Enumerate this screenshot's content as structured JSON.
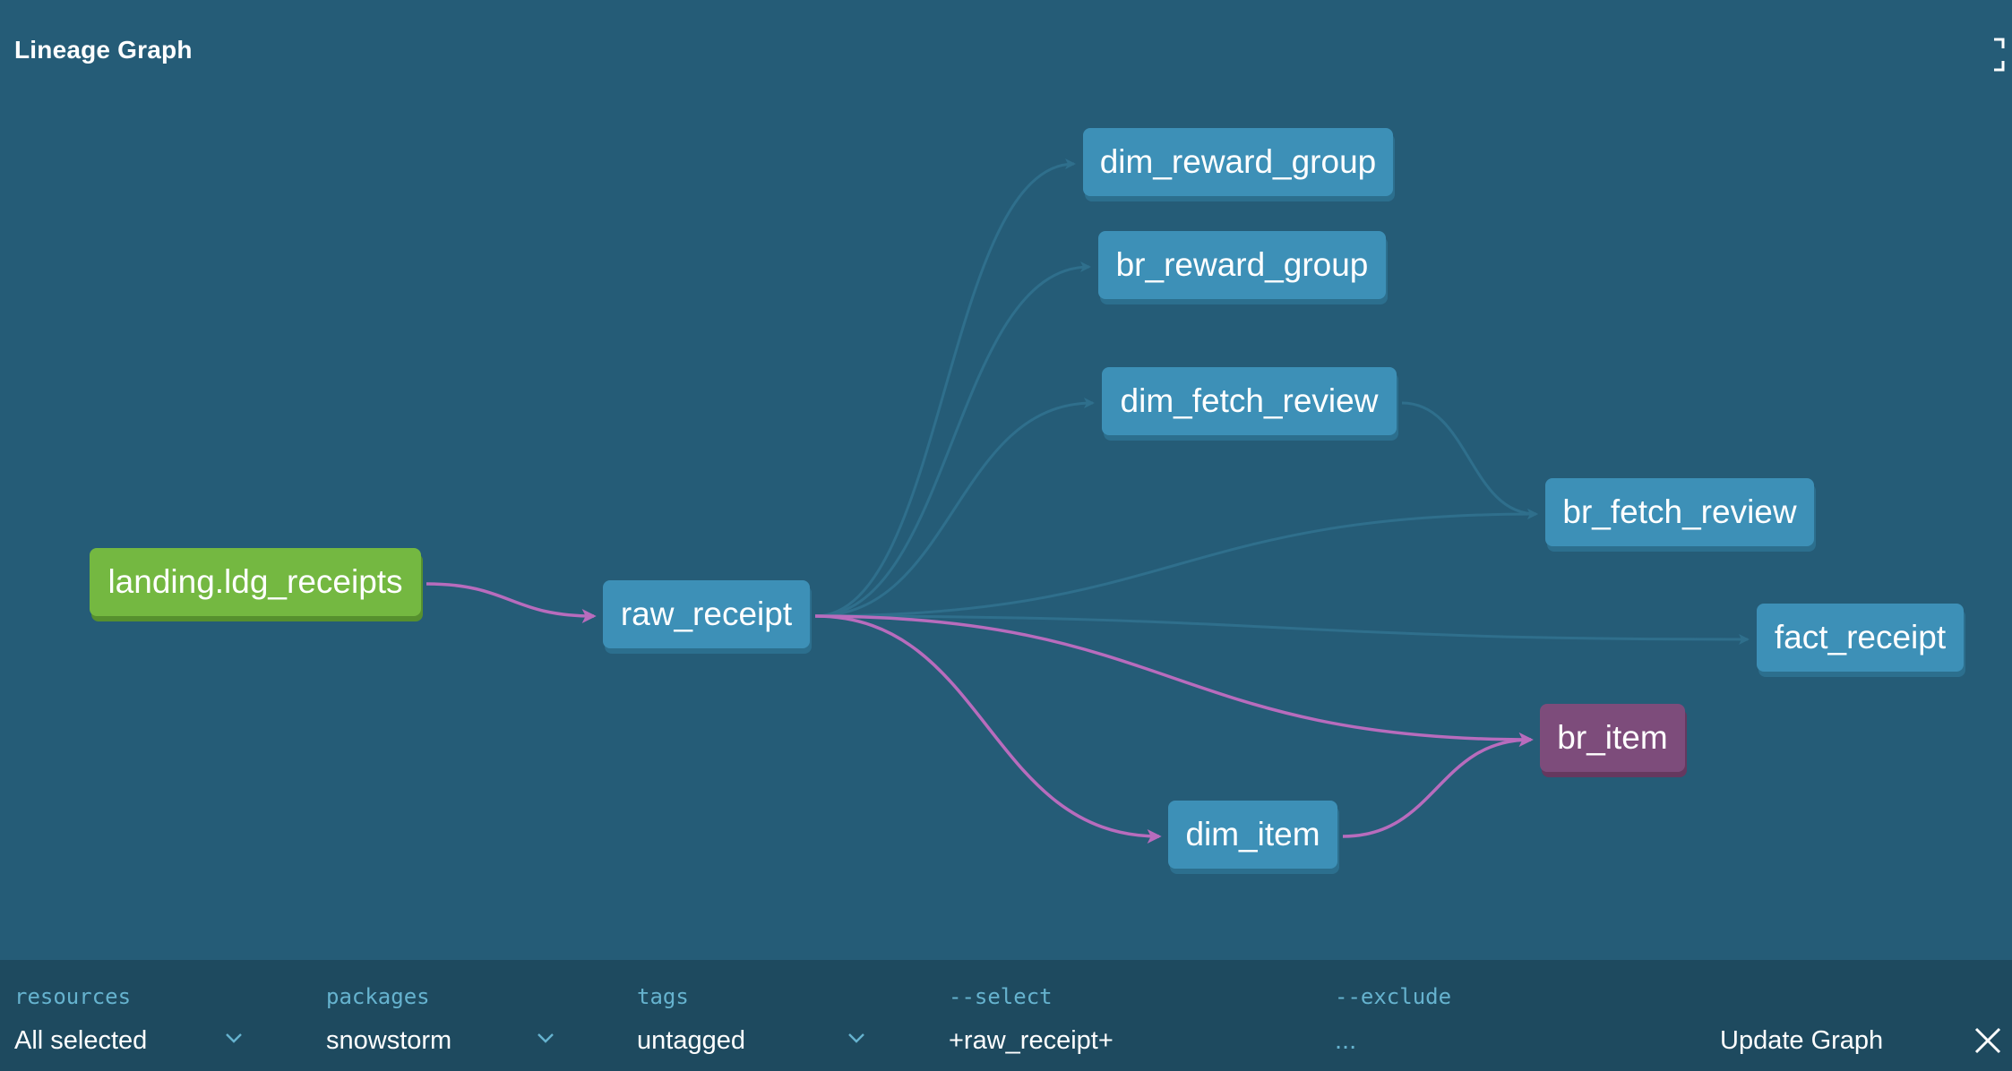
{
  "header": {
    "title": "Lineage Graph"
  },
  "graph": {
    "nodes": [
      {
        "id": "landing",
        "label": "landing.ldg_receipts",
        "kind": "source"
      },
      {
        "id": "raw_receipt",
        "label": "raw_receipt",
        "kind": "model"
      },
      {
        "id": "dim_reward_group",
        "label": "dim_reward_group",
        "kind": "model"
      },
      {
        "id": "br_reward_group",
        "label": "br_reward_group",
        "kind": "model"
      },
      {
        "id": "dim_fetch_review",
        "label": "dim_fetch_review",
        "kind": "model"
      },
      {
        "id": "br_fetch_review",
        "label": "br_fetch_review",
        "kind": "model"
      },
      {
        "id": "fact_receipt",
        "label": "fact_receipt",
        "kind": "model"
      },
      {
        "id": "br_item",
        "label": "br_item",
        "kind": "selected"
      },
      {
        "id": "dim_item",
        "label": "dim_item",
        "kind": "model"
      }
    ],
    "edges": [
      {
        "from": "raw_receipt",
        "to": "dim_reward_group",
        "highlight": false
      },
      {
        "from": "raw_receipt",
        "to": "br_reward_group",
        "highlight": false
      },
      {
        "from": "raw_receipt",
        "to": "dim_fetch_review",
        "highlight": false
      },
      {
        "from": "raw_receipt",
        "to": "br_fetch_review",
        "highlight": false
      },
      {
        "from": "dim_fetch_review",
        "to": "br_fetch_review",
        "highlight": false
      },
      {
        "from": "raw_receipt",
        "to": "fact_receipt",
        "highlight": false
      },
      {
        "from": "landing",
        "to": "raw_receipt",
        "highlight": true
      },
      {
        "from": "raw_receipt",
        "to": "br_item",
        "highlight": true
      },
      {
        "from": "raw_receipt",
        "to": "dim_item",
        "highlight": true
      },
      {
        "from": "dim_item",
        "to": "br_item",
        "highlight": true
      }
    ],
    "colors": {
      "highlight_edge": "#b86cbd",
      "dim_edge": "#2f6f8c",
      "model": "#3d90b7",
      "source": "#74b841",
      "selected": "#7d4c7b"
    }
  },
  "footer": {
    "resources": {
      "label": "resources",
      "value": "All selected"
    },
    "packages": {
      "label": "packages",
      "value": "snowstorm"
    },
    "tags": {
      "label": "tags",
      "value": "untagged"
    },
    "select": {
      "label": "--select",
      "value": "+raw_receipt+"
    },
    "exclude": {
      "label": "--exclude",
      "value": "..."
    },
    "update_button": "Update Graph"
  }
}
